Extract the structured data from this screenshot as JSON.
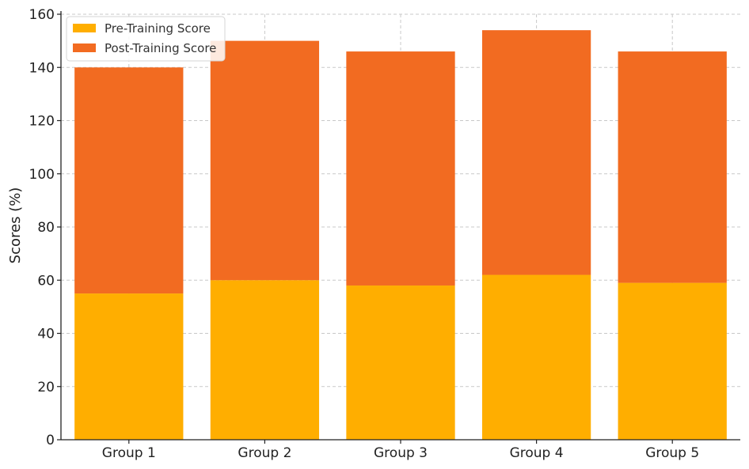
{
  "chart_data": {
    "type": "bar",
    "stacked": true,
    "categories": [
      "Group 1",
      "Group 2",
      "Group 3",
      "Group 4",
      "Group 5"
    ],
    "series": [
      {
        "name": "Pre-Training Score",
        "color": "#ffae00",
        "values": [
          55,
          60,
          58,
          62,
          59
        ]
      },
      {
        "name": "Post-Training Score",
        "color": "#f26b21",
        "values": [
          85,
          90,
          88,
          92,
          87
        ]
      }
    ],
    "title": "",
    "xlabel": "",
    "ylabel": "Scores (%)",
    "ylim": [
      0,
      160
    ],
    "yticks": [
      0,
      20,
      40,
      60,
      80,
      100,
      120,
      140,
      160
    ],
    "grid": true,
    "legend_position": "top-left"
  }
}
